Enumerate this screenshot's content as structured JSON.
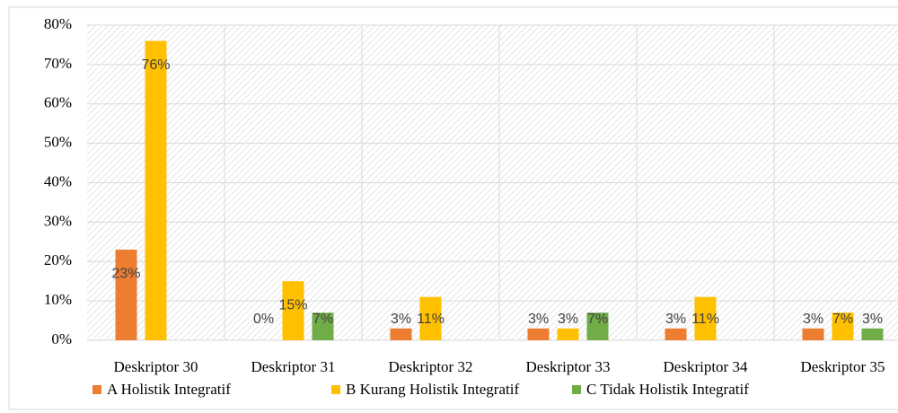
{
  "chart_data": {
    "type": "bar",
    "categories": [
      "Deskriptor 30",
      "Deskriptor 31",
      "Deskriptor 32",
      "Deskriptor 33",
      "Deskriptor 34",
      "Deskriptor 35"
    ],
    "series": [
      {
        "name": "A Holistik Integratif",
        "color": "#ED7D31",
        "values": [
          23,
          0,
          3,
          3,
          3,
          3
        ],
        "value_labels": [
          "23%",
          "0%",
          "3%",
          "3%",
          "3%",
          "3%"
        ]
      },
      {
        "name": "B Kurang Holistik Integratif",
        "color": "#FFC000",
        "values": [
          76,
          15,
          11,
          3,
          11,
          7
        ],
        "value_labels": [
          "76%",
          "15%",
          "11%",
          "3%",
          "11%",
          "7%"
        ]
      },
      {
        "name": "C Tidak Holistik Integratif",
        "color": "#70AD47",
        "values": [
          null,
          7,
          null,
          7,
          null,
          3
        ],
        "value_labels": [
          null,
          "7%",
          null,
          "7%",
          null,
          "3%"
        ]
      }
    ],
    "ylim": [
      0,
      80
    ],
    "yticks": [
      {
        "value": 0,
        "label": "0%"
      },
      {
        "value": 10,
        "label": "10%"
      },
      {
        "value": 20,
        "label": "20%"
      },
      {
        "value": 30,
        "label": "30%"
      },
      {
        "value": 40,
        "label": "40%"
      },
      {
        "value": 50,
        "label": "50%"
      },
      {
        "value": 60,
        "label": "60%"
      },
      {
        "value": 70,
        "label": "70%"
      },
      {
        "value": 80,
        "label": "80%"
      }
    ],
    "grid": true,
    "legend": "bottom"
  }
}
